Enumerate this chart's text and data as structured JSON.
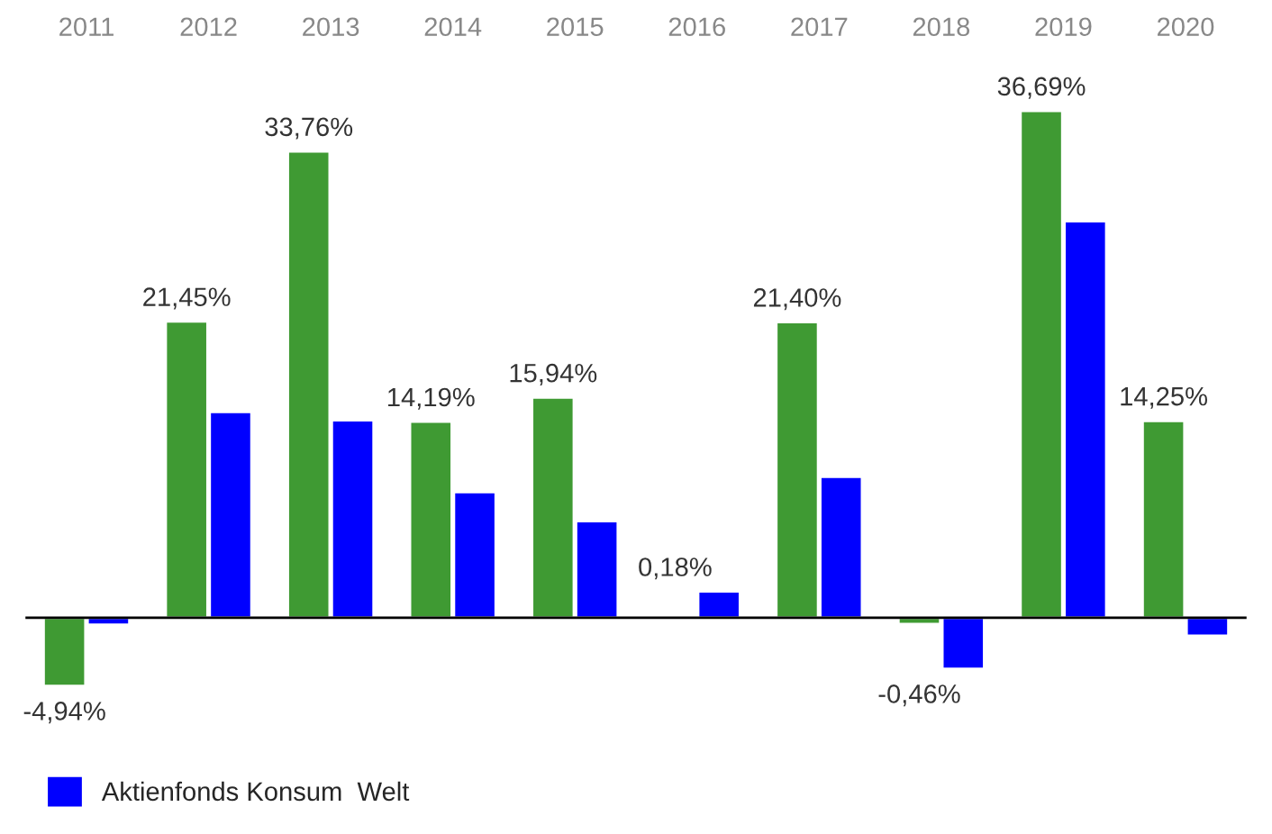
{
  "chart_data": {
    "type": "bar",
    "categories": [
      "2011",
      "2012",
      "2013",
      "2014",
      "2015",
      "2016",
      "2017",
      "2018",
      "2019",
      "2020"
    ],
    "series": [
      {
        "color": "#3f9a33",
        "values": [
          -4.94,
          21.45,
          33.76,
          14.19,
          15.94,
          0.18,
          21.4,
          -0.46,
          36.69,
          14.25
        ],
        "value_labels": [
          "-4,94%",
          "21,45%",
          "33,76%",
          "14,19%",
          "15,94%",
          "0,18%",
          "21,40%",
          "-0,46%",
          "36,69%",
          "14,25%"
        ]
      },
      {
        "name": "Aktienfonds Konsum  Welt",
        "color": "#0000ff",
        "values": [
          -0.5,
          14.9,
          14.3,
          9.1,
          7.0,
          1.9,
          10.2,
          -3.7,
          28.7,
          -1.3
        ]
      }
    ],
    "grid": false,
    "legend": "bottom"
  }
}
